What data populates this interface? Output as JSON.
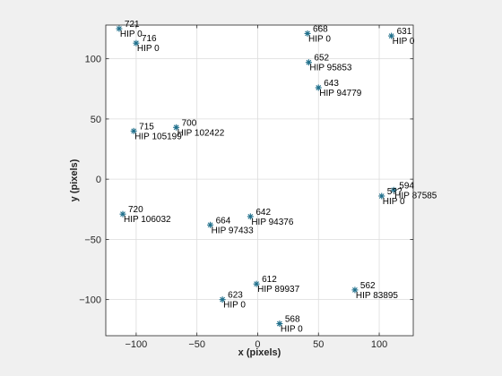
{
  "chart_data": {
    "type": "scatter",
    "xlabel": "x (pixels)",
    "ylabel": "y (pixels)",
    "xlim": [
      -125,
      128
    ],
    "ylim": [
      -130,
      128
    ],
    "xticks": [
      -100,
      -50,
      0,
      50,
      100
    ],
    "yticks": [
      -100,
      -50,
      0,
      50,
      100
    ],
    "grid": true,
    "marker": "asterisk",
    "marker_color": "#1f6f8b",
    "points": [
      {
        "id": "721",
        "hip": "HIP 0",
        "x": -114,
        "y": 125
      },
      {
        "id": "716",
        "hip": "HIP 0",
        "x": -100,
        "y": 113
      },
      {
        "id": "668",
        "hip": "HIP 0",
        "x": 41,
        "y": 121
      },
      {
        "id": "631",
        "hip": "HIP 0",
        "x": 110,
        "y": 119
      },
      {
        "id": "652",
        "hip": "HIP 95853",
        "x": 42,
        "y": 97
      },
      {
        "id": "643",
        "hip": "HIP 94779",
        "x": 50,
        "y": 76
      },
      {
        "id": "715",
        "hip": "HIP 105199",
        "x": -102,
        "y": 40
      },
      {
        "id": "700",
        "hip": "HIP 102422",
        "x": -67,
        "y": 43
      },
      {
        "id": "594",
        "hip": "HIP 87585",
        "x": 112,
        "y": -9
      },
      {
        "id": "5??",
        "hip": "HIP 0",
        "x": 102,
        "y": -14
      },
      {
        "id": "720",
        "hip": "HIP 106032",
        "x": -111,
        "y": -29
      },
      {
        "id": "642",
        "hip": "HIP 94376",
        "x": -6,
        "y": -31
      },
      {
        "id": "664",
        "hip": "HIP 97433",
        "x": -39,
        "y": -38
      },
      {
        "id": "612",
        "hip": "HIP 89937",
        "x": -1,
        "y": -87
      },
      {
        "id": "562",
        "hip": "HIP 83895",
        "x": 80,
        "y": -92
      },
      {
        "id": "623",
        "hip": "HIP 0",
        "x": -29,
        "y": -100
      },
      {
        "id": "568",
        "hip": "HIP 0",
        "x": 18,
        "y": -120
      }
    ]
  }
}
